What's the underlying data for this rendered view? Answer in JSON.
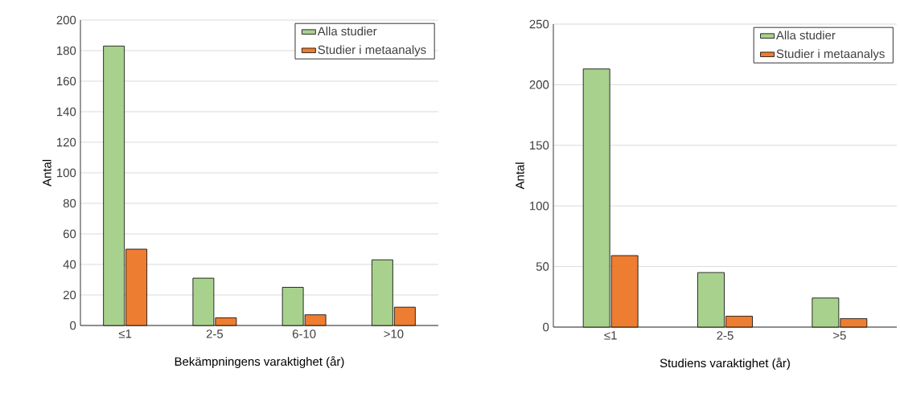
{
  "chart_data": [
    {
      "type": "bar",
      "categories": [
        "≤1",
        "2-5",
        "6-10",
        ">10"
      ],
      "xlabel": "Bekämpningens varaktighet (år)",
      "ylabel": "Antal",
      "ylim": [
        0,
        200
      ],
      "yticks": [
        0,
        20,
        40,
        60,
        80,
        100,
        120,
        140,
        160,
        180,
        200
      ],
      "grid": "y",
      "legend": "top right",
      "series": [
        {
          "name": "Alla studier",
          "color": "#a9d18e",
          "values": [
            183,
            31,
            25,
            43
          ]
        },
        {
          "name": "Studier i metaanalys",
          "color": "#ed7d31",
          "values": [
            50,
            5,
            7,
            12
          ]
        }
      ]
    },
    {
      "type": "bar",
      "categories": [
        "≤1",
        "2-5",
        ">5"
      ],
      "xlabel": "Studiens varaktighet (år)",
      "ylabel": "Antal",
      "ylim": [
        0,
        250
      ],
      "yticks": [
        0,
        50,
        100,
        150,
        200,
        250
      ],
      "grid": "y",
      "legend": "top right",
      "series": [
        {
          "name": "Alla studier",
          "color": "#a9d18e",
          "values": [
            213,
            45,
            24
          ]
        },
        {
          "name": "Studier i metaanalys",
          "color": "#ed7d31",
          "values": [
            59,
            9,
            7
          ]
        }
      ]
    }
  ]
}
